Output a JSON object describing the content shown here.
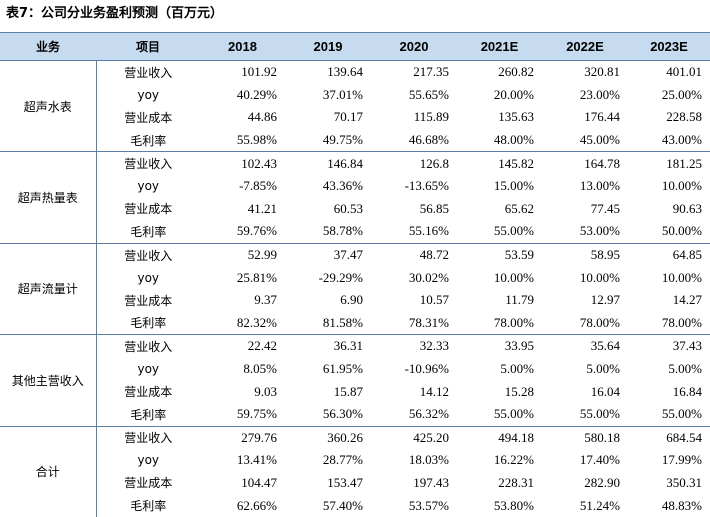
{
  "title": "表7：公司分业务盈利预测（百万元）",
  "headers": [
    "业务",
    "项目",
    "2018",
    "2019",
    "2020",
    "2021E",
    "2022E",
    "2023E"
  ],
  "groups": [
    {
      "business": "超声水表",
      "rows": [
        {
          "item": "营业收入",
          "values": [
            "101.92",
            "139.64",
            "217.35",
            "260.82",
            "320.81",
            "401.01"
          ]
        },
        {
          "item": "yoy",
          "values": [
            "40.29%",
            "37.01%",
            "55.65%",
            "20.00%",
            "23.00%",
            "25.00%"
          ]
        },
        {
          "item": "营业成本",
          "values": [
            "44.86",
            "70.17",
            "115.89",
            "135.63",
            "176.44",
            "228.58"
          ]
        },
        {
          "item": "毛利率",
          "values": [
            "55.98%",
            "49.75%",
            "46.68%",
            "48.00%",
            "45.00%",
            "43.00%"
          ]
        }
      ]
    },
    {
      "business": "超声热量表",
      "rows": [
        {
          "item": "营业收入",
          "values": [
            "102.43",
            "146.84",
            "126.8",
            "145.82",
            "164.78",
            "181.25"
          ]
        },
        {
          "item": "yoy",
          "values": [
            "-7.85%",
            "43.36%",
            "-13.65%",
            "15.00%",
            "13.00%",
            "10.00%"
          ]
        },
        {
          "item": "营业成本",
          "values": [
            "41.21",
            "60.53",
            "56.85",
            "65.62",
            "77.45",
            "90.63"
          ]
        },
        {
          "item": "毛利率",
          "values": [
            "59.76%",
            "58.78%",
            "55.16%",
            "55.00%",
            "53.00%",
            "50.00%"
          ]
        }
      ]
    },
    {
      "business": "超声流量计",
      "rows": [
        {
          "item": "营业收入",
          "values": [
            "52.99",
            "37.47",
            "48.72",
            "53.59",
            "58.95",
            "64.85"
          ]
        },
        {
          "item": "yoy",
          "values": [
            "25.81%",
            "-29.29%",
            "30.02%",
            "10.00%",
            "10.00%",
            "10.00%"
          ]
        },
        {
          "item": "营业成本",
          "values": [
            "9.37",
            "6.90",
            "10.57",
            "11.79",
            "12.97",
            "14.27"
          ]
        },
        {
          "item": "毛利率",
          "values": [
            "82.32%",
            "81.58%",
            "78.31%",
            "78.00%",
            "78.00%",
            "78.00%"
          ]
        }
      ]
    },
    {
      "business": "其他主营收入",
      "rows": [
        {
          "item": "营业收入",
          "values": [
            "22.42",
            "36.31",
            "32.33",
            "33.95",
            "35.64",
            "37.43"
          ]
        },
        {
          "item": "yoy",
          "values": [
            "8.05%",
            "61.95%",
            "-10.96%",
            "5.00%",
            "5.00%",
            "5.00%"
          ]
        },
        {
          "item": "营业成本",
          "values": [
            "9.03",
            "15.87",
            "14.12",
            "15.28",
            "16.04",
            "16.84"
          ]
        },
        {
          "item": "毛利率",
          "values": [
            "59.75%",
            "56.30%",
            "56.32%",
            "55.00%",
            "55.00%",
            "55.00%"
          ]
        }
      ]
    },
    {
      "business": "合计",
      "rows": [
        {
          "item": "营业收入",
          "values": [
            "279.76",
            "360.26",
            "425.20",
            "494.18",
            "580.18",
            "684.54"
          ]
        },
        {
          "item": "yoy",
          "values": [
            "13.41%",
            "28.77%",
            "18.03%",
            "16.22%",
            "17.40%",
            "17.99%"
          ]
        },
        {
          "item": "营业成本",
          "values": [
            "104.47",
            "153.47",
            "197.43",
            "228.31",
            "282.90",
            "350.31"
          ]
        },
        {
          "item": "毛利率",
          "values": [
            "62.66%",
            "57.40%",
            "53.57%",
            "53.80%",
            "51.24%",
            "48.83%"
          ]
        }
      ]
    }
  ]
}
